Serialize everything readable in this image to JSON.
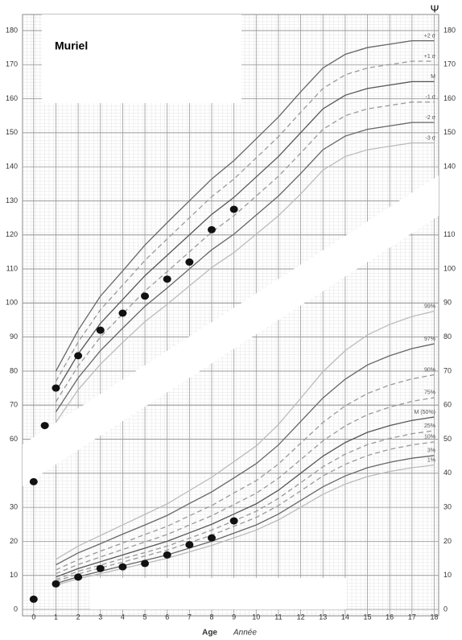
{
  "chart_data": {
    "type": "growth",
    "title": "Muriel",
    "logo": "Ψ",
    "xlabel": "Age",
    "xlabel2": "Année",
    "xlim": [
      -0.5,
      18.2
    ],
    "ylim": [
      10,
      184
    ],
    "y2lim": [
      0,
      174
    ],
    "xticks": [
      0,
      1,
      2,
      3,
      4,
      5,
      6,
      7,
      8,
      9,
      10,
      11,
      12,
      13,
      14,
      15,
      16,
      17,
      18
    ],
    "yticks": [
      60,
      70,
      80,
      90,
      100,
      110,
      120,
      130,
      140,
      150,
      160,
      170,
      180
    ],
    "yticks_right": [
      140,
      150,
      160,
      170,
      180
    ],
    "y2ticks_left": [
      0,
      10,
      20,
      30
    ],
    "y2ticks": [
      0,
      10,
      20,
      30,
      40,
      50,
      60,
      70,
      80,
      90,
      100,
      110
    ],
    "grid": true,
    "curve_x": [
      1,
      2,
      3,
      4,
      5,
      6,
      7,
      8,
      9,
      10,
      11,
      12,
      13,
      14,
      15,
      16,
      17,
      18
    ],
    "height_series": [
      {
        "name": "+2 σ",
        "color": "#666",
        "dashed": false,
        "values": [
          80,
          92,
          102,
          109.4,
          117,
          123.6,
          130,
          136.4,
          141.8,
          148.2,
          154.6,
          162,
          169,
          173,
          175,
          176,
          177,
          177
        ]
      },
      {
        "name": "+1 σ",
        "color": "#999",
        "dashed": true,
        "values": [
          77,
          88.5,
          98,
          105.2,
          112.5,
          118.8,
          125,
          131.2,
          136.4,
          142.6,
          148.8,
          156,
          163,
          167,
          169,
          170,
          171,
          171
        ]
      },
      {
        "name": "M",
        "color": "#555",
        "dashed": false,
        "values": [
          74,
          85,
          94,
          101,
          108,
          114,
          120,
          126,
          131,
          137,
          143,
          150,
          157,
          161,
          163,
          164,
          165,
          165
        ]
      },
      {
        "name": "-1 σ",
        "color": "#999",
        "dashed": true,
        "values": [
          71,
          81.5,
          90,
          96.8,
          103.5,
          109.2,
          115,
          120.8,
          125.6,
          131.4,
          137.2,
          144,
          151,
          155,
          157,
          158,
          159,
          159
        ]
      },
      {
        "name": "-2 σ",
        "color": "#666",
        "dashed": false,
        "values": [
          68,
          78,
          86,
          92.6,
          99,
          104.4,
          110,
          115.6,
          120.2,
          125.8,
          131.4,
          138,
          145,
          149,
          151,
          152,
          153,
          153
        ]
      },
      {
        "name": "-3 σ",
        "color": "#bbb",
        "dashed": false,
        "values": [
          65,
          74.5,
          82,
          88.4,
          94.5,
          99.6,
          105,
          110.4,
          114.8,
          120.2,
          125.6,
          132,
          139,
          143,
          145,
          146,
          147,
          147
        ]
      }
    ],
    "weight_series": [
      {
        "name": "99%",
        "color": "#bbb",
        "dashed": false,
        "values": [
          14.7,
          18.6,
          21.7,
          24.8,
          27.9,
          31,
          34.9,
          38.8,
          43.4,
          48,
          54.3,
          62,
          69.8,
          76,
          80.6,
          83.7,
          86,
          87.6
        ]
      },
      {
        "name": "97%",
        "color": "#666",
        "dashed": false,
        "values": [
          13.1,
          16.6,
          19.3,
          22.1,
          24.8,
          27.6,
          31.1,
          34.5,
          38.6,
          42.8,
          48.3,
          55.2,
          62.1,
          67.6,
          71.8,
          74.5,
          76.6,
          78
        ]
      },
      {
        "name": "90%",
        "color": "#999",
        "dashed": true,
        "values": [
          11.6,
          14.6,
          17.1,
          19.5,
          22,
          24.4,
          27.5,
          30.5,
          34.2,
          37.8,
          42.7,
          48.8,
          54.9,
          59.8,
          63.4,
          65.9,
          67.7,
          68.9
        ]
      },
      {
        "name": "75%",
        "color": "#999",
        "dashed": true,
        "values": [
          10.5,
          13.2,
          15.4,
          17.6,
          19.8,
          22,
          24.8,
          27.5,
          30.8,
          34.1,
          38.5,
          44,
          49.5,
          53.9,
          57.2,
          59.4,
          61.1,
          62.2
        ]
      },
      {
        "name": "M (50%)",
        "color": "#555",
        "dashed": false,
        "values": [
          9.5,
          12,
          14,
          16,
          18,
          20,
          22.5,
          25,
          28,
          31,
          35,
          40,
          45,
          49,
          52,
          54,
          55.5,
          56.5
        ]
      },
      {
        "name": "25%",
        "color": "#999",
        "dashed": true,
        "values": [
          8.8,
          11.2,
          13,
          14.9,
          16.7,
          18.6,
          20.9,
          23.3,
          26,
          28.8,
          32.6,
          37.2,
          41.9,
          45.6,
          48.4,
          50.2,
          51.6,
          52.5
        ]
      },
      {
        "name": "10%",
        "color": "#999",
        "dashed": true,
        "values": [
          8.3,
          10.4,
          12.2,
          13.9,
          15.7,
          17.4,
          19.6,
          21.8,
          24.4,
          27,
          30.5,
          34.8,
          39.2,
          42.6,
          45.2,
          47,
          48.3,
          49.2
        ]
      },
      {
        "name": "3%",
        "color": "#666",
        "dashed": false,
        "values": [
          7.6,
          9.6,
          11.2,
          12.8,
          14.4,
          16,
          18,
          20,
          22.4,
          24.8,
          28,
          32,
          36,
          39.2,
          41.6,
          43.2,
          44.4,
          45.2
        ]
      },
      {
        "name": "1%",
        "color": "#bbb",
        "dashed": false,
        "values": [
          7.1,
          9,
          10.5,
          12,
          13.5,
          15,
          16.9,
          18.8,
          21,
          23.3,
          26.3,
          30,
          33.8,
          36.8,
          39,
          40.5,
          41.6,
          42.4
        ]
      }
    ],
    "height_points": {
      "color": "#111",
      "x": [
        0,
        0.5,
        1,
        2,
        3,
        4,
        5,
        6,
        7,
        8,
        9
      ],
      "values": [
        47.5,
        64,
        75,
        84.5,
        92,
        97,
        102,
        107,
        112,
        121.5,
        127.5
      ]
    },
    "weight_points": {
      "color": "#111",
      "x": [
        0,
        1,
        2,
        3,
        4,
        5,
        6,
        7,
        8,
        9
      ],
      "values": [
        3,
        7.5,
        9.5,
        12,
        12.5,
        13.5,
        16,
        19,
        21,
        26
      ]
    }
  }
}
